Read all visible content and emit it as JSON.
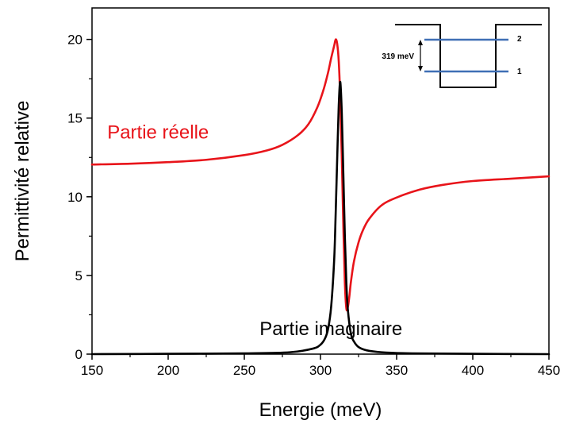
{
  "chart_data": {
    "type": "line",
    "xlabel": "Energie (meV)",
    "ylabel": "Permittivité relative",
    "xlim": [
      150,
      450
    ],
    "ylim": [
      0,
      22
    ],
    "xticks": [
      150,
      200,
      250,
      300,
      350,
      400,
      450
    ],
    "yticks": [
      0,
      5,
      10,
      15,
      20
    ],
    "grid": false,
    "series": [
      {
        "name": "Partie réelle",
        "color": "#e8141a",
        "x": [
          150,
          175,
          200,
          225,
          250,
          265,
          275,
          285,
          292,
          298,
          302,
          305,
          307,
          309,
          310,
          311,
          312,
          313,
          314,
          315,
          316,
          317,
          318,
          319,
          320,
          322,
          325,
          328,
          332,
          340,
          350,
          365,
          380,
          400,
          425,
          450
        ],
        "y": [
          12.05,
          12.1,
          12.2,
          12.35,
          12.65,
          12.95,
          13.3,
          13.9,
          14.6,
          15.7,
          16.8,
          17.9,
          18.8,
          19.6,
          20.0,
          19.7,
          18.6,
          16.2,
          12.5,
          8.2,
          4.6,
          2.9,
          3.0,
          3.7,
          4.6,
          5.9,
          7.1,
          7.9,
          8.6,
          9.45,
          9.95,
          10.45,
          10.75,
          11.0,
          11.15,
          11.3
        ]
      },
      {
        "name": "Partie imaginaire",
        "color": "#000000",
        "x": [
          150,
          200,
          250,
          280,
          295,
          300,
          303,
          305,
          307,
          309,
          310,
          311,
          312,
          313,
          314,
          315,
          316,
          317,
          318,
          320,
          322,
          325,
          330,
          340,
          360,
          400,
          450
        ],
        "y": [
          0.0,
          0.02,
          0.05,
          0.12,
          0.35,
          0.6,
          1.0,
          1.6,
          3.0,
          6.0,
          9.0,
          12.5,
          15.8,
          17.3,
          15.3,
          11.5,
          7.5,
          4.5,
          2.8,
          1.3,
          0.8,
          0.45,
          0.25,
          0.12,
          0.05,
          0.02,
          0.0
        ]
      }
    ],
    "annotations": [
      {
        "text": "Partie réelle",
        "x": 160,
        "y": 13.7,
        "color": "#e8141a"
      },
      {
        "text": "Partie imaginaire",
        "x": 260,
        "y": 1.2,
        "color": "#000000"
      }
    ],
    "inset": {
      "energy_label": "319 meV",
      "level_labels": [
        "2",
        "1"
      ],
      "well_color": "#000000",
      "level_color": "#3f6fb5"
    }
  }
}
